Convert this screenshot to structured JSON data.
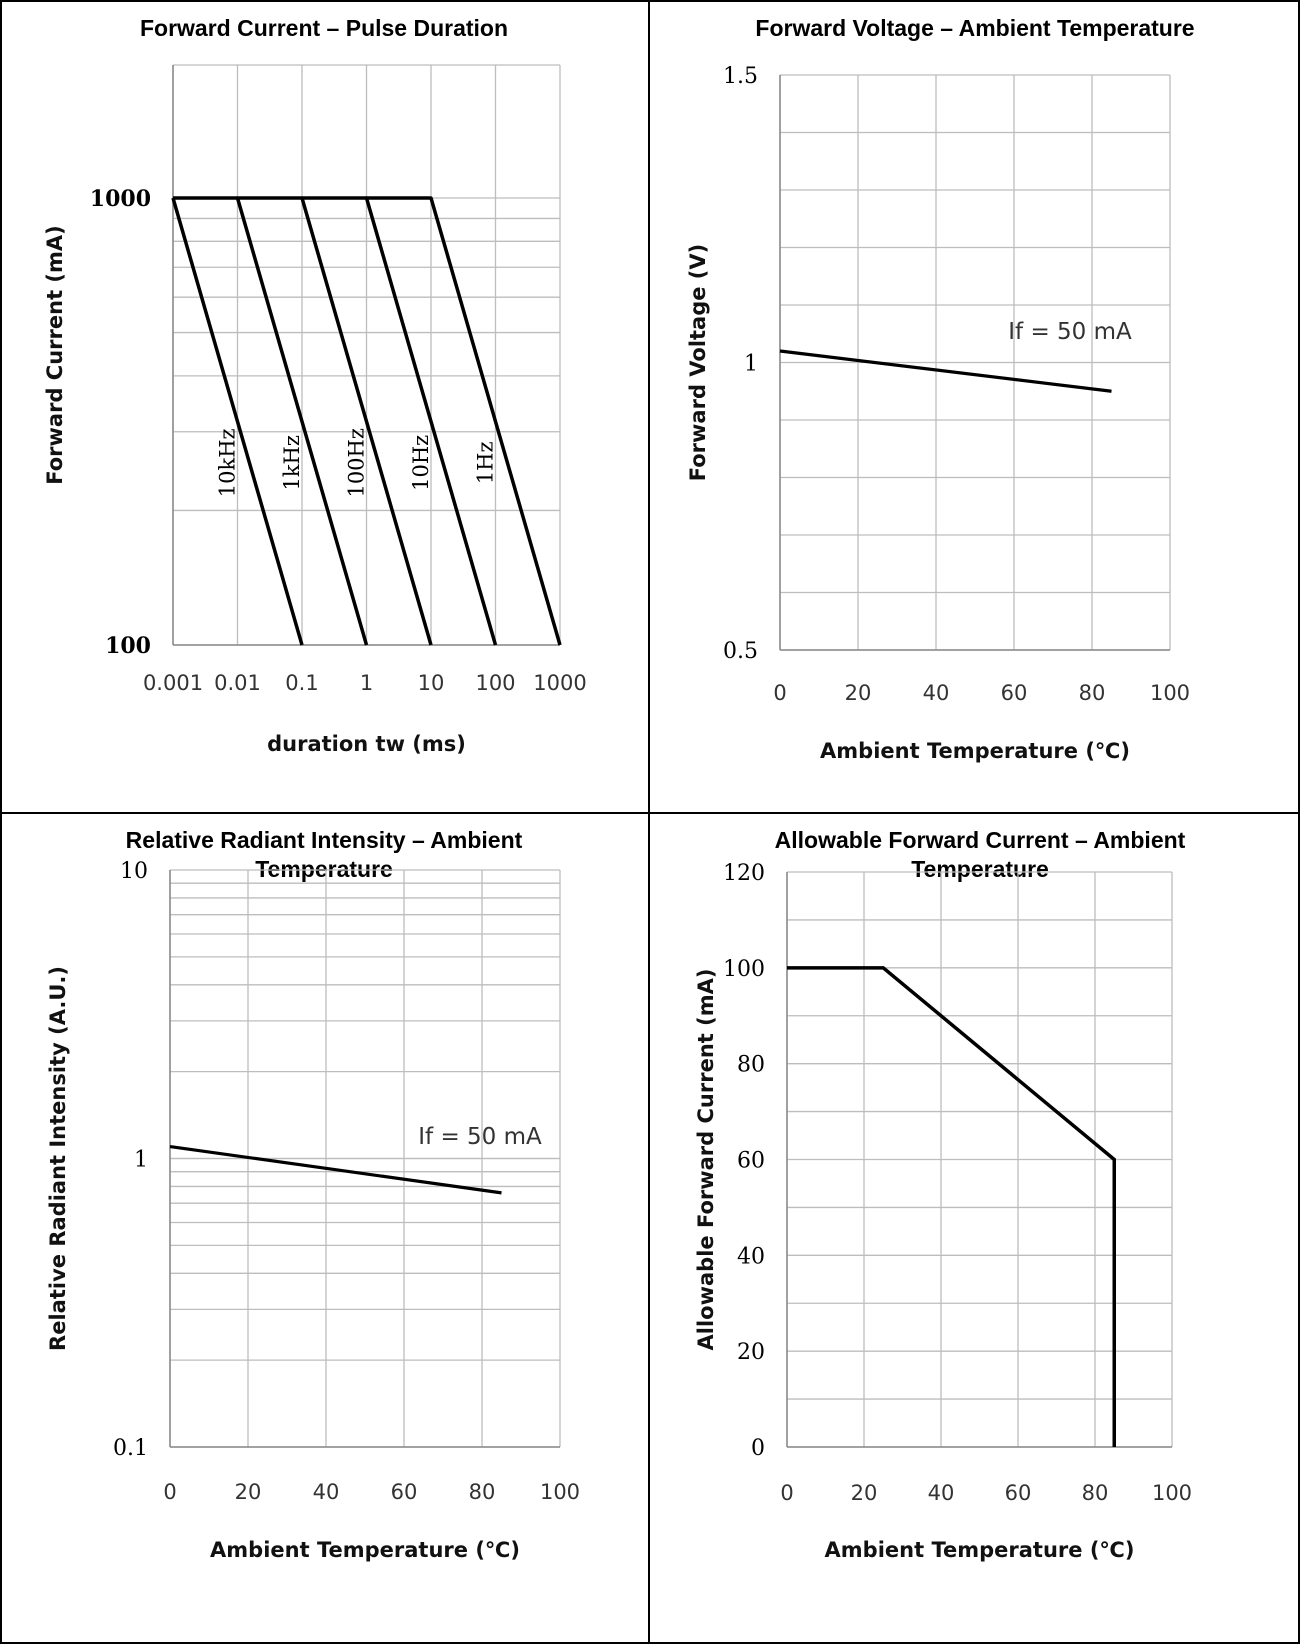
{
  "panels": [
    {
      "title": "Forward Current – Pulse Duration"
    },
    {
      "title": "Forward Voltage – Ambient Temperature"
    },
    {
      "title": "Relative Radiant Intensity – Ambient Temperature"
    },
    {
      "title": "Allowable Forward Current – Ambient Temperature"
    }
  ],
  "chart_data": [
    {
      "type": "line",
      "title": "Forward Current – Pulse Duration",
      "xlabel": "duration tw (ms)",
      "ylabel": "Forward Current  (mA)",
      "xscale": "log",
      "yscale": "log",
      "xlim": [
        0.001,
        1000
      ],
      "ylim": [
        100,
        2000
      ],
      "xticks": [
        "0.001",
        "0.01",
        "0.1",
        "1",
        "10",
        "100",
        "1000"
      ],
      "yticks": [
        "100",
        "1000"
      ],
      "grid": true,
      "series": [
        {
          "name": "10kHz",
          "x": [
            0.001,
            0.1
          ],
          "y": [
            1000,
            100
          ]
        },
        {
          "name": "1kHz",
          "x": [
            0.001,
            0.01,
            1
          ],
          "y": [
            1000,
            1000,
            100
          ]
        },
        {
          "name": "100Hz",
          "x": [
            0.01,
            0.1,
            10
          ],
          "y": [
            1000,
            1000,
            100
          ]
        },
        {
          "name": "10Hz",
          "x": [
            0.1,
            1,
            100
          ],
          "y": [
            1000,
            1000,
            100
          ]
        },
        {
          "name": "1Hz",
          "x": [
            1,
            10,
            1000
          ],
          "y": [
            1000,
            1000,
            100
          ]
        }
      ]
    },
    {
      "type": "line",
      "title": "Forward Voltage – Ambient Temperature",
      "xlabel": "Ambient Temperature (℃)",
      "ylabel": "Forward Voltage (V)",
      "xlim": [
        0,
        100
      ],
      "ylim": [
        0.5,
        1.5
      ],
      "xticks": [
        "0",
        "20",
        "40",
        "60",
        "80",
        "100"
      ],
      "yticks": [
        "0.5",
        "1",
        "1.5"
      ],
      "grid": true,
      "annotation": "If = 50 mA",
      "series": [
        {
          "x": [
            0,
            85
          ],
          "y": [
            1.02,
            0.95
          ]
        }
      ]
    },
    {
      "type": "line",
      "title": "Relative Radiant Intensity – Ambient Temperature",
      "xlabel": "Ambient Temperature (℃)",
      "ylabel": "Relative Radiant Intensity (A.U.)",
      "yscale": "log",
      "xlim": [
        0,
        100
      ],
      "ylim": [
        0.1,
        10
      ],
      "xticks": [
        "0",
        "20",
        "40",
        "60",
        "80",
        "100"
      ],
      "yticks": [
        "0.1",
        "1",
        "10"
      ],
      "grid": true,
      "annotation": "If = 50 mA",
      "series": [
        {
          "x": [
            0,
            85
          ],
          "y": [
            1.1,
            0.76
          ]
        }
      ]
    },
    {
      "type": "line",
      "title": "Allowable Forward Current – Ambient Temperature",
      "xlabel": "Ambient Temperature (℃)",
      "ylabel": "Allowable Forward Current (mA)",
      "xlim": [
        0,
        100
      ],
      "ylim": [
        0,
        120
      ],
      "xticks": [
        "0",
        "20",
        "40",
        "60",
        "80",
        "100"
      ],
      "yticks": [
        "0",
        "20",
        "40",
        "60",
        "80",
        "100",
        "120"
      ],
      "grid": true,
      "series": [
        {
          "x": [
            0,
            25,
            85,
            85
          ],
          "y": [
            100,
            100,
            60,
            0
          ]
        }
      ]
    }
  ]
}
